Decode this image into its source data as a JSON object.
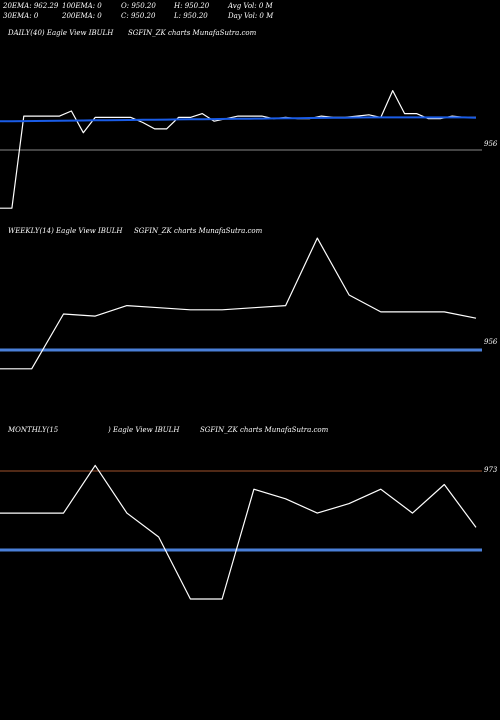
{
  "header": {
    "ema20": "20EMA: 962.29",
    "ema100": "100EMA: 0",
    "open": "O: 950.20",
    "high": "H: 950.20",
    "avgvol": "Avg Vol: 0  M",
    "ema30": "30EMA: 0",
    "ema200": "200EMA: 0",
    "close": "C: 950.20",
    "low": "L: 950.20",
    "dayvol": "Day Vol: 0  M"
  },
  "colors": {
    "background": "#000000",
    "price_line": "#ffffff",
    "ema_line": "#1a5ce6",
    "thick_line": "#4a7fd8",
    "ref_line": "#a0522d"
  },
  "chart_data": [
    {
      "type": "line",
      "panel_label": "DAILY(40) Eagle  View  IBULH",
      "panel_label2": "SGFIN_ZK charts MunafaSutra.com",
      "level_label": "956",
      "series": [
        {
          "values": [
            888,
            888,
            960,
            960,
            960,
            960,
            964,
            947,
            959,
            959,
            959,
            959,
            955,
            950,
            950,
            959,
            959,
            962,
            956,
            958,
            960,
            960,
            960,
            958,
            959,
            958,
            958,
            960,
            959,
            959,
            960,
            961,
            959,
            980,
            962,
            962,
            958,
            958,
            960,
            959,
            959
          ]
        },
        {
          "values": [
            956,
            956,
            956.1,
            956.2,
            956.3,
            956.4,
            956.5,
            956.6,
            956.7,
            956.8,
            956.9,
            957,
            957.1,
            957.2,
            957.3,
            957.4,
            957.5,
            957.6,
            957.7,
            957.8,
            957.9,
            958,
            958.1,
            958.2,
            958.3,
            958.4,
            958.5,
            958.6,
            958.7,
            958.8,
            958.9,
            959,
            959,
            959,
            959,
            959,
            959,
            959,
            959,
            959,
            958.8
          ]
        }
      ],
      "ref_value": 956
    },
    {
      "type": "line",
      "panel_label": "WEEKLY(14) Eagle  View  IBULH",
      "panel_label2": "SGFIN_ZK charts MunafaSutra.com",
      "level_label": "956",
      "series": [
        {
          "values": [
            930,
            930,
            956,
            955,
            960,
            959,
            958,
            958,
            959,
            960,
            992,
            965,
            957,
            957,
            957,
            954
          ]
        }
      ],
      "ref_value": 956
    },
    {
      "type": "line",
      "panel_label": "MONTHLY(15",
      "panel_label2": ") Eagle  View  IBULH",
      "panel_label3": "SGFIN_ZK charts MunafaSutra.com",
      "level_label": "973",
      "series": [
        {
          "values": [
            963,
            963,
            963,
            973,
            963,
            958,
            945,
            945,
            968,
            966,
            963,
            965,
            968,
            963,
            969,
            960
          ]
        }
      ],
      "ref_value": 956,
      "top_value": 973
    }
  ]
}
